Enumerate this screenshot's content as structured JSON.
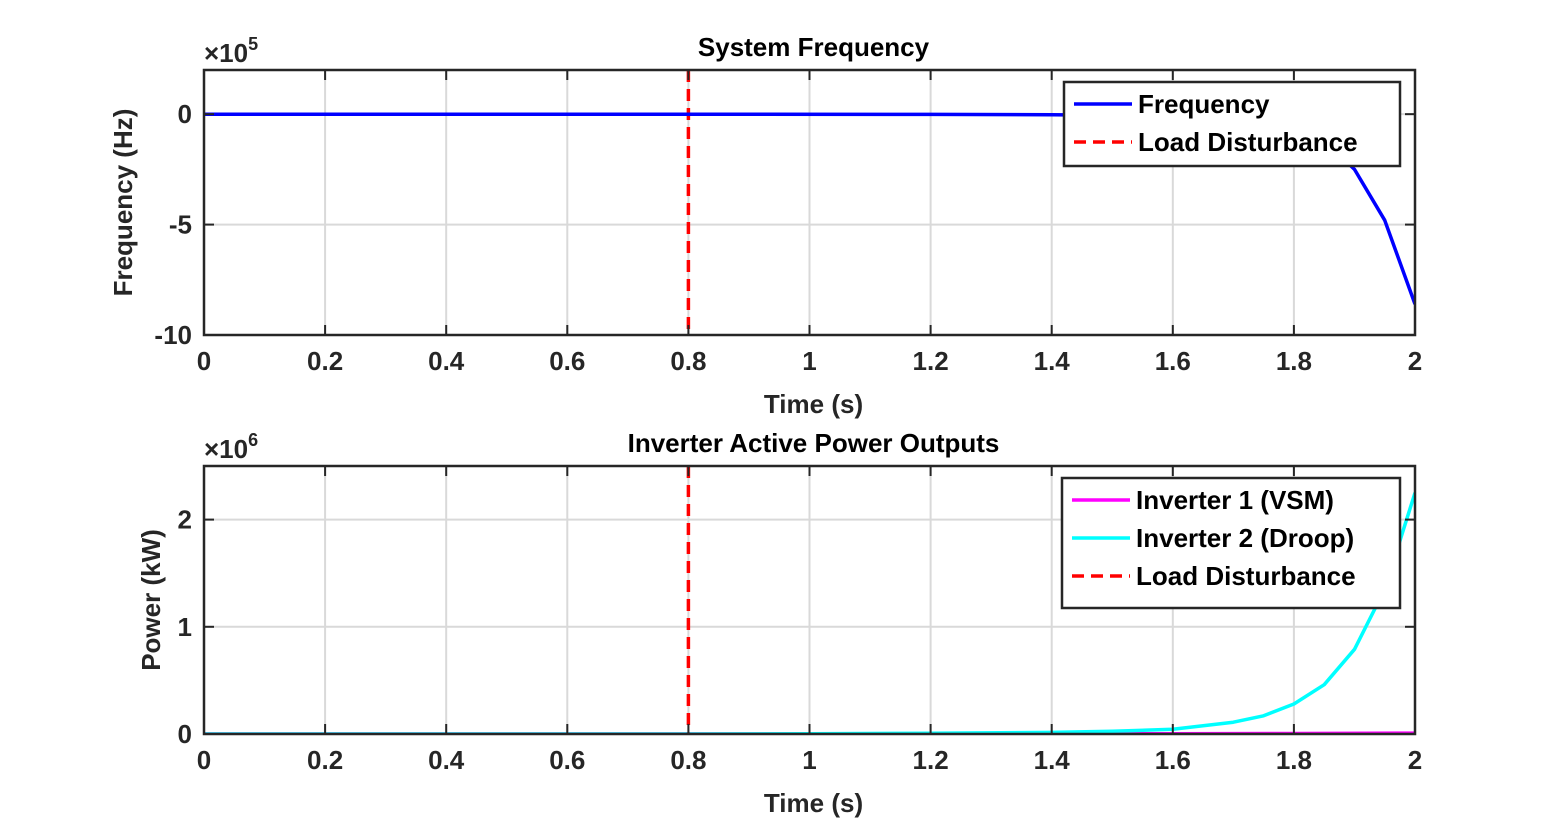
{
  "chart_data": [
    {
      "type": "line",
      "title": "System Frequency",
      "xlabel": "Time (s)",
      "ylabel": "Frequency (Hz)",
      "xlim": [
        0,
        2
      ],
      "ylim": [
        -1000000,
        200000
      ],
      "xticks": [
        0,
        0.2,
        0.4,
        0.6,
        0.8,
        1,
        1.2,
        1.4,
        1.6,
        1.8,
        2
      ],
      "xtick_labels": [
        "0",
        "0.2",
        "0.4",
        "0.6",
        "0.8",
        "1",
        "1.2",
        "1.4",
        "1.6",
        "1.8",
        "2"
      ],
      "yticks": [
        -1000000,
        -500000,
        0
      ],
      "ytick_labels": [
        "-10",
        "-5",
        "0"
      ],
      "y_multiplier": {
        "base": "×10",
        "exponent": "5"
      },
      "grid": true,
      "legend_position": "top-right",
      "series": [
        {
          "name": "Frequency",
          "color": "#0000FF",
          "style": "solid",
          "x": [
            0,
            0.8,
            1.2,
            1.4,
            1.5,
            1.6,
            1.7,
            1.75,
            1.8,
            1.85,
            1.9,
            1.95,
            2.0
          ],
          "y": [
            0,
            0,
            -1000,
            -3000,
            -5000,
            -11000,
            -25000,
            -40000,
            -67000,
            -120000,
            -250000,
            -480000,
            -860000
          ]
        },
        {
          "name": "Load Disturbance",
          "color": "#FF0000",
          "style": "dashed",
          "vline_x": 0.8
        }
      ]
    },
    {
      "type": "line",
      "title": "Inverter Active Power Outputs",
      "xlabel": "Time (s)",
      "ylabel": "Power (kW)",
      "xlim": [
        0,
        2
      ],
      "ylim": [
        0,
        2500000
      ],
      "xticks": [
        0,
        0.2,
        0.4,
        0.6,
        0.8,
        1,
        1.2,
        1.4,
        1.6,
        1.8,
        2
      ],
      "xtick_labels": [
        "0",
        "0.2",
        "0.4",
        "0.6",
        "0.8",
        "1",
        "1.2",
        "1.4",
        "1.6",
        "1.8",
        "2"
      ],
      "yticks": [
        0,
        1000000,
        2000000
      ],
      "ytick_labels": [
        "0",
        "1",
        "2"
      ],
      "y_multiplier": {
        "base": "×10",
        "exponent": "6"
      },
      "grid": true,
      "legend_position": "top-right",
      "series": [
        {
          "name": "Inverter 1 (VSM)",
          "color": "#FF00FF",
          "style": "solid",
          "x": [
            0,
            0.8,
            1.2,
            1.4,
            1.6,
            1.8,
            2.0
          ],
          "y": [
            0,
            0,
            1000,
            2000,
            3000,
            5000,
            8000
          ]
        },
        {
          "name": "Inverter 2 (Droop)",
          "color": "#00FFFF",
          "style": "solid",
          "x": [
            0,
            0.8,
            1.0,
            1.2,
            1.4,
            1.5,
            1.6,
            1.7,
            1.75,
            1.8,
            1.85,
            1.9,
            1.95,
            2.0
          ],
          "y": [
            0,
            0,
            2000,
            7000,
            15000,
            25000,
            45000,
            110000,
            170000,
            280000,
            460000,
            790000,
            1350000,
            2250000
          ]
        },
        {
          "name": "Load Disturbance",
          "color": "#FF0000",
          "style": "dashed",
          "vline_x": 0.8
        }
      ]
    }
  ]
}
